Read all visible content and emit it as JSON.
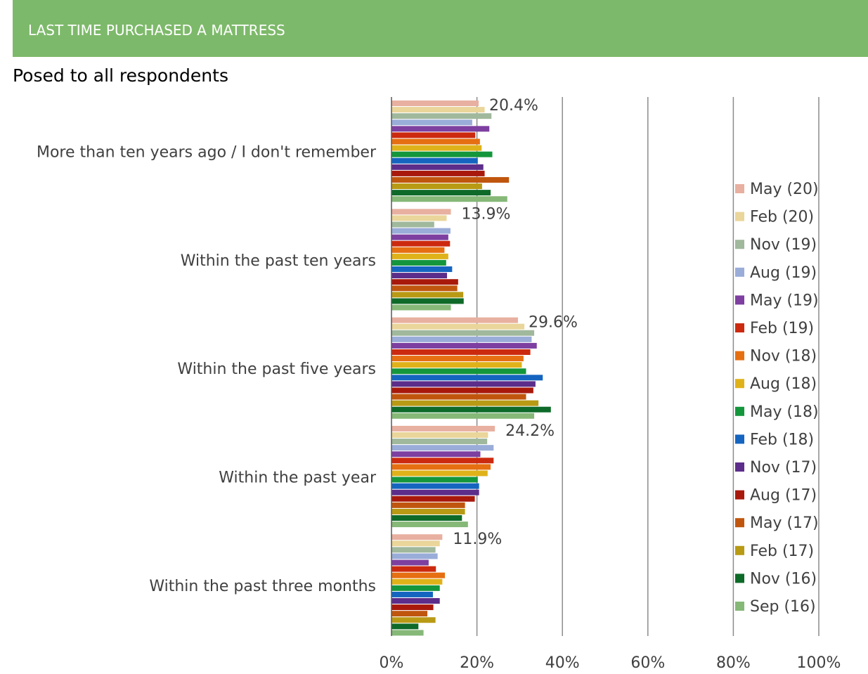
{
  "header": {
    "title": "LAST TIME PURCHASED A MATTRESS",
    "subtitle": "Posed to all respondents"
  },
  "chart_data": {
    "type": "bar",
    "orientation": "horizontal",
    "categories": [
      "More than ten years ago / I don't remember",
      "Within the past ten years",
      "Within the past five years",
      "Within the past year",
      "Within the past three months"
    ],
    "xlim": [
      0,
      100
    ],
    "x_ticks": [
      "0%",
      "20%",
      "40%",
      "60%",
      "80%",
      "100%"
    ],
    "x_tick_values": [
      0,
      20,
      40,
      60,
      80,
      100
    ],
    "grid": true,
    "legend_position": "right",
    "data_labels": [
      "20.4%",
      "13.9%",
      "29.6%",
      "24.2%",
      "11.9%"
    ],
    "series": [
      {
        "name": "May (20)",
        "color": "#e8b0a0",
        "values": [
          20.4,
          13.9,
          29.6,
          24.2,
          11.9
        ]
      },
      {
        "name": "Feb (20)",
        "color": "#ead59a",
        "values": [
          21.8,
          12.9,
          31.1,
          22.6,
          11.3
        ]
      },
      {
        "name": "Nov (19)",
        "color": "#a0b89c",
        "values": [
          23.4,
          10.0,
          33.4,
          22.4,
          10.3
        ]
      },
      {
        "name": "Aug (19)",
        "color": "#9aacd8",
        "values": [
          18.9,
          13.8,
          32.8,
          23.9,
          10.8
        ]
      },
      {
        "name": "May (19)",
        "color": "#7d3fa0",
        "values": [
          22.9,
          13.3,
          34.0,
          20.8,
          8.7
        ]
      },
      {
        "name": "Feb (19)",
        "color": "#cc2a0f",
        "values": [
          19.6,
          13.7,
          32.5,
          23.9,
          10.4
        ]
      },
      {
        "name": "Nov (18)",
        "color": "#e66f12",
        "values": [
          20.7,
          12.4,
          30.9,
          23.2,
          12.5
        ]
      },
      {
        "name": "Aug (18)",
        "color": "#e0b21a",
        "values": [
          21.1,
          13.3,
          30.5,
          22.5,
          11.9
        ]
      },
      {
        "name": "May (18)",
        "color": "#14963c",
        "values": [
          23.6,
          12.8,
          31.5,
          20.2,
          11.3
        ]
      },
      {
        "name": "Feb (18)",
        "color": "#1565c0",
        "values": [
          20.2,
          14.2,
          35.4,
          20.5,
          9.7
        ]
      },
      {
        "name": "Nov (17)",
        "color": "#5c2d8a",
        "values": [
          21.5,
          13.0,
          33.7,
          20.5,
          11.3
        ]
      },
      {
        "name": "Aug (17)",
        "color": "#a8190c",
        "values": [
          21.8,
          15.6,
          33.2,
          19.5,
          9.8
        ]
      },
      {
        "name": "May (17)",
        "color": "#c0560e",
        "values": [
          27.5,
          15.4,
          31.5,
          17.2,
          8.4
        ]
      },
      {
        "name": "Feb (17)",
        "color": "#b89a14",
        "values": [
          21.2,
          16.8,
          34.4,
          17.2,
          10.3
        ]
      },
      {
        "name": "Nov (16)",
        "color": "#0e6a28",
        "values": [
          23.2,
          16.9,
          37.3,
          16.5,
          6.3
        ]
      },
      {
        "name": "Sep (16)",
        "color": "#86b878",
        "values": [
          27.1,
          13.9,
          33.4,
          17.9,
          7.5
        ]
      }
    ]
  }
}
